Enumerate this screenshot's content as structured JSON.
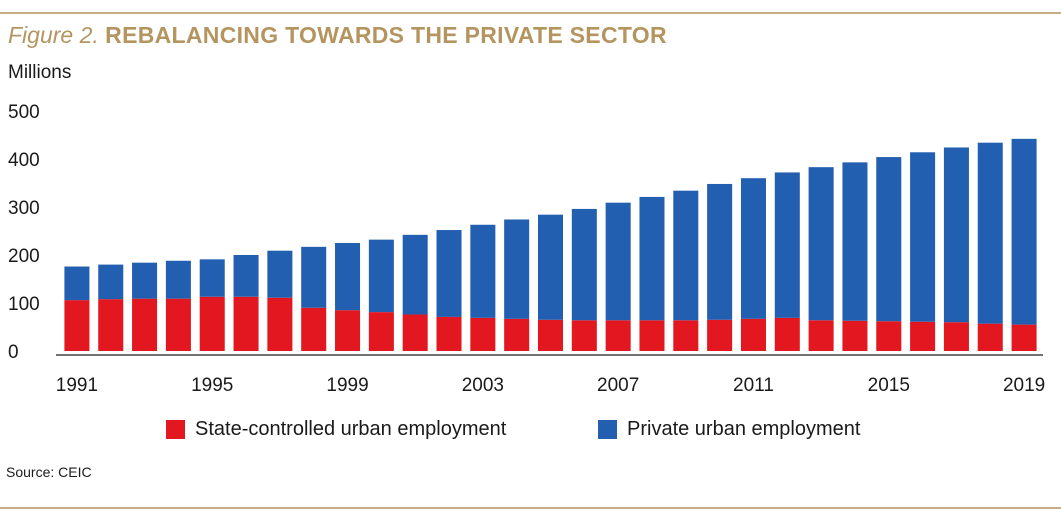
{
  "figure": {
    "label": "Figure 2.",
    "title": "REBALANCING TOWARDS THE PRIVATE SECTOR",
    "unit": "Millions",
    "source": "Source: CEIC"
  },
  "colors": {
    "state": "#e3171f",
    "private": "#235fb0",
    "accent": "#b4955f",
    "rule": "#c9ad86"
  },
  "chart_data": {
    "type": "bar",
    "stacked": true,
    "categories": [
      "1991",
      "1992",
      "1993",
      "1994",
      "1995",
      "1996",
      "1997",
      "1998",
      "1999",
      "2000",
      "2001",
      "2002",
      "2003",
      "2004",
      "2005",
      "2006",
      "2007",
      "2008",
      "2009",
      "2010",
      "2011",
      "2012",
      "2013",
      "2014",
      "2015",
      "2016",
      "2017",
      "2018",
      "2019"
    ],
    "x_tick_labels": [
      "1991",
      "1995",
      "1999",
      "2003",
      "2007",
      "2011",
      "2015",
      "2019"
    ],
    "y_ticks": [
      0,
      100,
      200,
      300,
      400,
      500
    ],
    "ylim": [
      0,
      500
    ],
    "ylabel": "Millions",
    "legend_position": "bottom",
    "series": [
      {
        "name": "State-controlled urban employment",
        "values": [
          106,
          108,
          109,
          109,
          113,
          113,
          111,
          90,
          85,
          81,
          76,
          71,
          69,
          67,
          65,
          64,
          64,
          64,
          64,
          65,
          67,
          69,
          64,
          63,
          62,
          61,
          60,
          57,
          55
        ]
      },
      {
        "name": "Private urban employment",
        "values": [
          70,
          72,
          75,
          79,
          78,
          87,
          98,
          127,
          140,
          151,
          166,
          181,
          194,
          207,
          219,
          232,
          245,
          257,
          270,
          283,
          293,
          303,
          319,
          330,
          342,
          353,
          364,
          377,
          387
        ]
      }
    ]
  }
}
